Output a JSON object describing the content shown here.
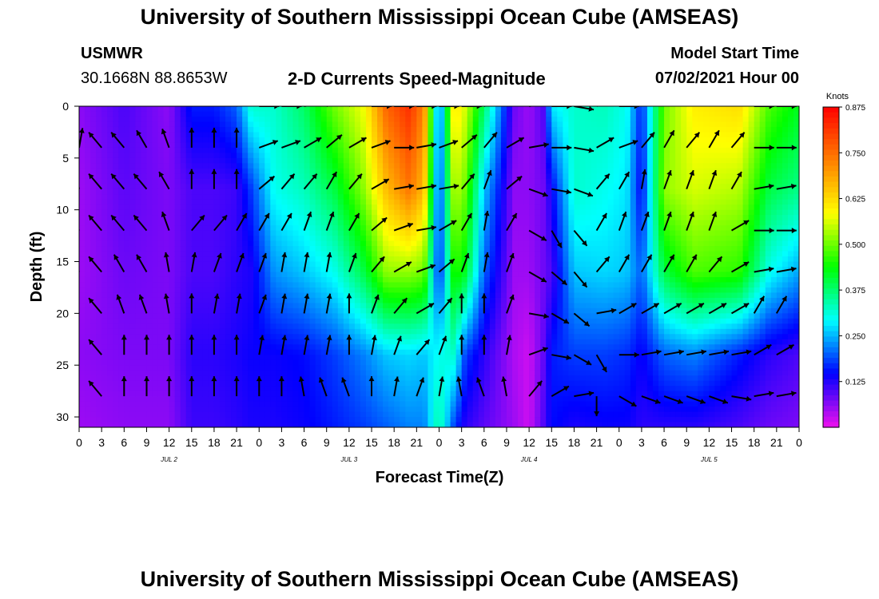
{
  "chart_data": {
    "type": "heatmap",
    "title_top": "University of Southern Mississippi Ocean Cube (AMSEAS)",
    "title_bottom": "University of Southern Mississippi Ocean Cube (AMSEAS)",
    "station": "USMWR",
    "location": "30.1668N  88.8653W",
    "subtitle": "2-D Currents Speed-Magnitude",
    "model_start_label": "Model Start Time",
    "model_start_value": "07/02/2021 Hour 00",
    "xlabel": "Forecast Time(Z)",
    "ylabel": "Depth (ft)",
    "x_range_hours": [
      0,
      96
    ],
    "ylim": [
      0,
      31
    ],
    "x_tick_labels": [
      "0",
      "3",
      "6",
      "9",
      "12",
      "15",
      "18",
      "21",
      "0",
      "3",
      "6",
      "9",
      "12",
      "15",
      "18",
      "21",
      "0",
      "3",
      "6",
      "9",
      "12",
      "15",
      "18",
      "21",
      "0",
      "3",
      "6",
      "9",
      "12",
      "15",
      "18",
      "21",
      "0"
    ],
    "day_labels": [
      "JUL 2",
      "JUL 3",
      "JUL 4",
      "JUL 5"
    ],
    "y_ticks": [
      0,
      5,
      10,
      15,
      20,
      25,
      30
    ],
    "colorbar": {
      "unit": "Knots",
      "range": [
        0,
        0.875
      ],
      "tick_labels": [
        "0.875",
        "0.750",
        "0.625",
        "0.500",
        "0.375",
        "0.250",
        "0.125"
      ],
      "tick_values": [
        0.875,
        0.75,
        0.625,
        0.5,
        0.375,
        0.25,
        0.125
      ],
      "colors": [
        "#ee11ee",
        "#0000ff",
        "#00ffff",
        "#00ff00",
        "#ffff00",
        "#ff7f00",
        "#ff0000"
      ]
    },
    "depths_ft": [
      0,
      4,
      8,
      12,
      16,
      20,
      24,
      28
    ],
    "speed_profile_depths_ft": [
      0,
      8,
      16,
      24,
      31
    ],
    "speed_profiles": [
      {
        "hour": 0,
        "speeds": [
          0.06,
          0.05,
          0.05,
          0.06,
          0.05
        ]
      },
      {
        "hour": 6,
        "speeds": [
          0.1,
          0.09,
          0.08,
          0.07,
          0.06
        ]
      },
      {
        "hour": 12,
        "speeds": [
          0.06,
          0.07,
          0.07,
          0.07,
          0.06
        ]
      },
      {
        "hour": 15,
        "speeds": [
          0.16,
          0.1,
          0.1,
          0.12,
          0.11
        ]
      },
      {
        "hour": 18,
        "speeds": [
          0.16,
          0.1,
          0.1,
          0.12,
          0.11
        ]
      },
      {
        "hour": 21,
        "speeds": [
          0.2,
          0.11,
          0.12,
          0.13,
          0.12
        ]
      },
      {
        "hour": 23,
        "speeds": [
          0.32,
          0.18,
          0.13,
          0.14,
          0.13
        ]
      },
      {
        "hour": 26,
        "speeds": [
          0.32,
          0.3,
          0.23,
          0.14,
          0.13
        ]
      },
      {
        "hour": 30,
        "speeds": [
          0.38,
          0.33,
          0.26,
          0.15,
          0.14
        ]
      },
      {
        "hour": 34,
        "speeds": [
          0.5,
          0.4,
          0.3,
          0.18,
          0.16
        ]
      },
      {
        "hour": 38,
        "speeds": [
          0.58,
          0.52,
          0.4,
          0.22,
          0.18
        ]
      },
      {
        "hour": 41,
        "speeds": [
          0.76,
          0.66,
          0.52,
          0.26,
          0.2
        ]
      },
      {
        "hour": 44,
        "speeds": [
          0.82,
          0.74,
          0.52,
          0.27,
          0.22
        ]
      },
      {
        "hour": 46,
        "speeds": [
          0.72,
          0.66,
          0.5,
          0.26,
          0.22
        ]
      },
      {
        "hour": 48,
        "speeds": [
          0.18,
          0.16,
          0.15,
          0.3,
          0.35
        ]
      },
      {
        "hour": 50,
        "speeds": [
          0.62,
          0.55,
          0.46,
          0.32,
          0.18
        ]
      },
      {
        "hour": 51.5,
        "speeds": [
          0.56,
          0.5,
          0.42,
          0.18,
          0.12
        ]
      },
      {
        "hour": 54,
        "speeds": [
          0.38,
          0.26,
          0.2,
          0.12,
          0.09
        ]
      },
      {
        "hour": 58,
        "speeds": [
          0.08,
          0.06,
          0.05,
          0.04,
          0.05
        ]
      },
      {
        "hour": 60,
        "speeds": [
          0.05,
          0.06,
          0.05,
          0.02,
          0.02
        ]
      },
      {
        "hour": 62,
        "speeds": [
          0.1,
          0.08,
          0.08,
          0.09,
          0.1
        ]
      },
      {
        "hour": 63,
        "speeds": [
          0.28,
          0.14,
          0.1,
          0.16,
          0.15
        ]
      },
      {
        "hour": 66,
        "speeds": [
          0.32,
          0.32,
          0.26,
          0.18,
          0.13
        ]
      },
      {
        "hour": 70,
        "speeds": [
          0.33,
          0.3,
          0.27,
          0.18,
          0.14
        ]
      },
      {
        "hour": 73,
        "speeds": [
          0.3,
          0.28,
          0.26,
          0.17,
          0.14
        ]
      },
      {
        "hour": 75,
        "speeds": [
          0.16,
          0.14,
          0.2,
          0.14,
          0.12
        ]
      },
      {
        "hour": 78,
        "speeds": [
          0.5,
          0.52,
          0.4,
          0.2,
          0.12
        ]
      },
      {
        "hour": 82,
        "speeds": [
          0.6,
          0.56,
          0.48,
          0.22,
          0.12
        ]
      },
      {
        "hour": 88,
        "speeds": [
          0.62,
          0.54,
          0.46,
          0.16,
          0.1
        ]
      },
      {
        "hour": 92,
        "speeds": [
          0.48,
          0.4,
          0.3,
          0.12,
          0.08
        ]
      },
      {
        "hour": 96,
        "speeds": [
          0.42,
          0.36,
          0.24,
          0.1,
          0.07
        ]
      }
    ],
    "vector_hours": [
      0,
      3,
      6,
      9,
      12,
      15,
      18,
      21,
      24,
      27,
      30,
      33,
      36,
      39,
      42,
      45,
      48,
      51,
      54,
      57,
      60,
      63,
      66,
      69,
      72,
      75,
      78,
      81,
      84,
      87,
      90,
      93,
      96
    ],
    "vector_directions_deg": [
      [
        10,
        -40,
        10,
        20,
        40,
        50,
        30,
        60,
        90,
        90,
        80,
        70,
        60,
        90,
        90,
        90,
        90,
        90,
        70,
        50,
        80,
        90,
        100,
        60,
        90,
        40,
        40,
        40,
        40,
        30,
        90,
        90,
        90
      ],
      [
        10,
        -40,
        -40,
        -30,
        -20,
        0,
        0,
        0,
        70,
        70,
        60,
        50,
        60,
        70,
        90,
        80,
        70,
        50,
        40,
        60,
        80,
        90,
        100,
        60,
        70,
        40,
        30,
        40,
        30,
        40,
        90,
        90,
        90
      ],
      [
        -10,
        -40,
        -40,
        -40,
        -30,
        0,
        0,
        0,
        50,
        40,
        40,
        30,
        40,
        60,
        80,
        80,
        80,
        40,
        20,
        50,
        110,
        100,
        110,
        40,
        30,
        10,
        20,
        20,
        20,
        30,
        80,
        80,
        80
      ],
      [
        -20,
        -40,
        -40,
        -40,
        -20,
        40,
        40,
        30,
        30,
        30,
        20,
        20,
        30,
        50,
        70,
        80,
        60,
        30,
        10,
        30,
        120,
        150,
        140,
        30,
        20,
        20,
        20,
        20,
        20,
        60,
        90,
        90,
        90
      ],
      [
        -20,
        -40,
        -30,
        -30,
        -10,
        10,
        20,
        20,
        20,
        10,
        10,
        10,
        20,
        40,
        60,
        70,
        50,
        20,
        10,
        20,
        120,
        130,
        140,
        40,
        30,
        30,
        30,
        30,
        40,
        60,
        80,
        80,
        80
      ],
      [
        -40,
        -40,
        -20,
        -20,
        -10,
        0,
        10,
        10,
        20,
        10,
        10,
        10,
        0,
        20,
        40,
        60,
        40,
        0,
        0,
        20,
        100,
        120,
        130,
        80,
        60,
        60,
        60,
        60,
        60,
        60,
        30,
        30,
        30
      ],
      [
        -60,
        -40,
        0,
        0,
        0,
        0,
        0,
        0,
        10,
        10,
        10,
        10,
        0,
        10,
        20,
        40,
        20,
        0,
        0,
        10,
        70,
        100,
        120,
        150,
        90,
        80,
        80,
        80,
        80,
        80,
        60,
        60,
        60
      ],
      [
        -70,
        -40,
        0,
        0,
        0,
        0,
        0,
        0,
        0,
        0,
        -10,
        -20,
        -20,
        0,
        10,
        20,
        10,
        -10,
        -20,
        -10,
        40,
        60,
        80,
        180,
        120,
        110,
        110,
        110,
        110,
        100,
        80,
        80,
        80
      ]
    ]
  }
}
